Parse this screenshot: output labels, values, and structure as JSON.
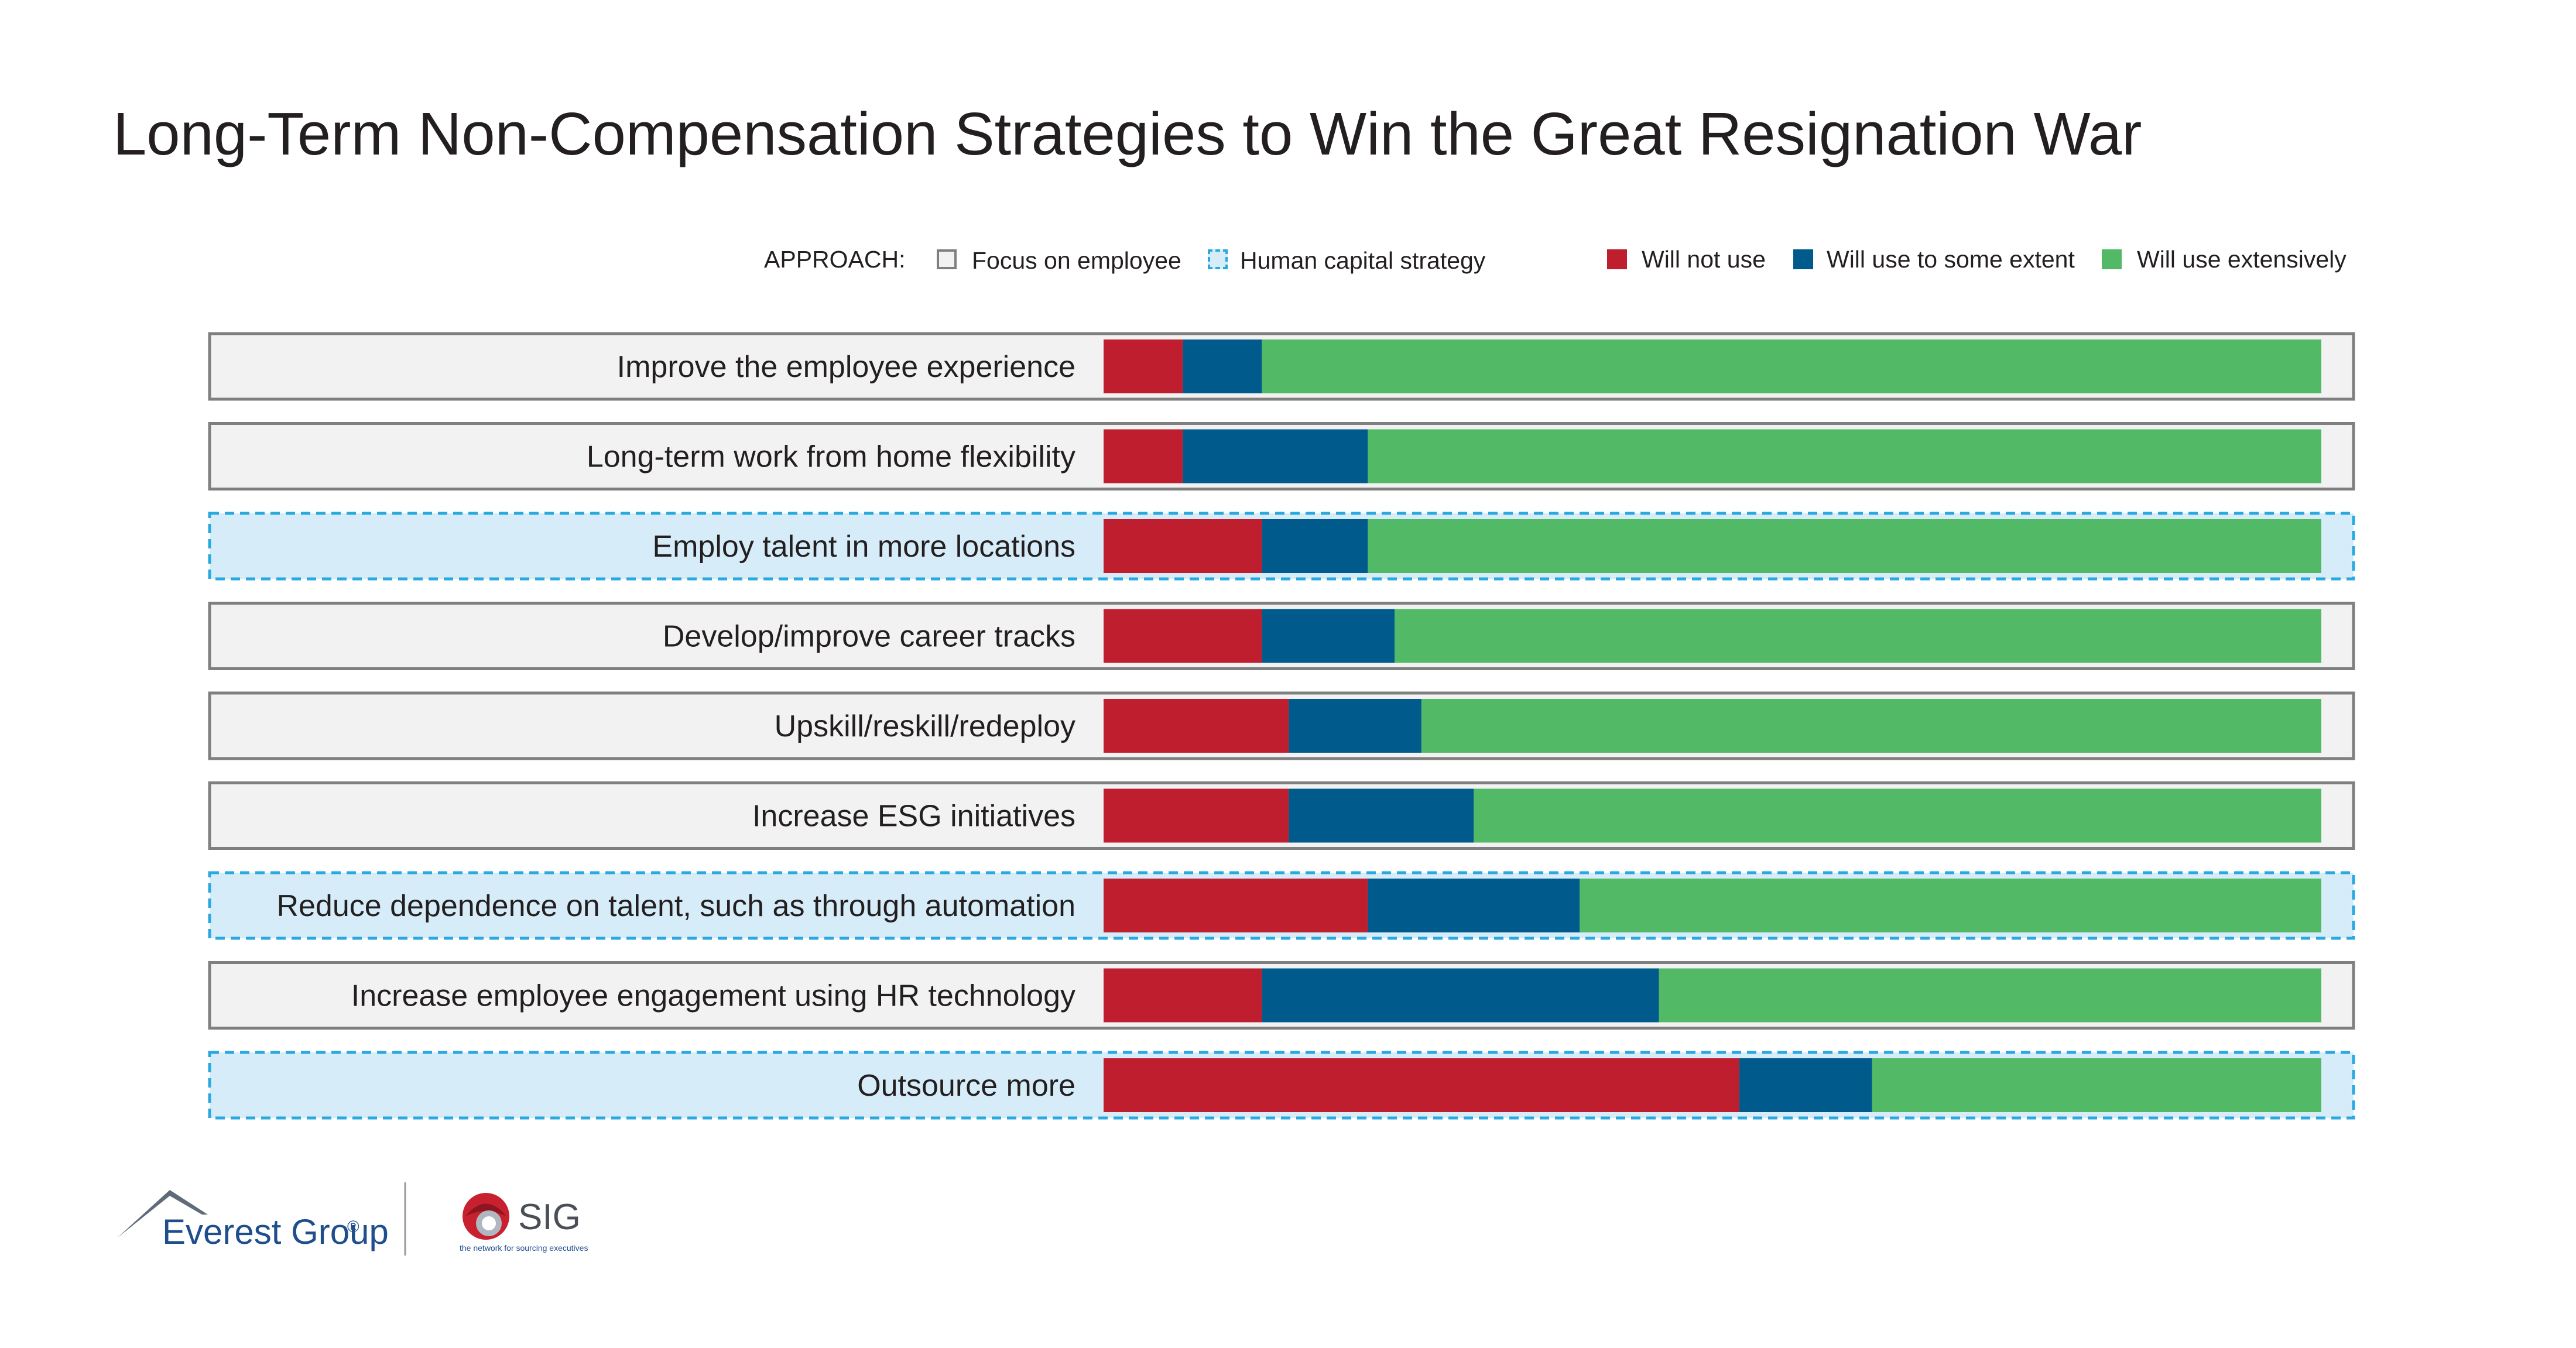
{
  "title": "Long-Term Non-Compensation Strategies to Win the Great Resignation War",
  "legend": {
    "approach_label": "APPROACH:",
    "approaches": [
      {
        "label": "Focus on employee",
        "style": "solid",
        "fill": "#f2f2f2",
        "border": "#7f7f7f"
      },
      {
        "label": "Human capital strategy",
        "style": "dashed",
        "fill": "#d6ecf8",
        "border": "#29a9e0"
      }
    ],
    "responses": [
      {
        "label": "Will not use",
        "color": "#be1e2d"
      },
      {
        "label": "Will use to some extent",
        "color": "#005a8c"
      },
      {
        "label": "Will use extensively",
        "color": "#52b966"
      }
    ]
  },
  "chart_data": {
    "type": "bar",
    "orientation": "horizontal",
    "stacked": true,
    "normalized_to": 100,
    "categories": [
      "Improve the employee experience",
      "Long-term work from home flexibility",
      "Employ talent in more locations",
      "Develop/improve career tracks",
      "Upskill/reskill/redeploy",
      "Increase ESG initiatives",
      "Reduce dependence on talent, such as through automation",
      "Increase employee engagement using HR technology",
      "Outsource more"
    ],
    "approach": [
      "Focus on employee",
      "Focus on employee",
      "Human capital strategy",
      "Focus on employee",
      "Focus on employee",
      "Focus on employee",
      "Human capital strategy",
      "Focus on employee",
      "Human capital strategy"
    ],
    "series": [
      {
        "name": "Will not use",
        "color": "#be1e2d",
        "values": [
          6.5,
          6.5,
          13,
          13,
          15.2,
          15.2,
          21.7,
          13,
          52.2
        ]
      },
      {
        "name": "Will use to some extent",
        "color": "#005a8c",
        "values": [
          6.5,
          15.2,
          8.7,
          10.9,
          10.9,
          15.2,
          17.4,
          32.6,
          10.9
        ]
      },
      {
        "name": "Will use extensively",
        "color": "#52b966",
        "values": [
          87,
          78.3,
          78.3,
          76.1,
          73.9,
          69.6,
          60.9,
          54.4,
          36.9
        ]
      }
    ],
    "xlim": [
      0,
      100
    ]
  },
  "logos": {
    "everest": {
      "text": "Everest Group",
      "mark": "®"
    },
    "sig": {
      "text": "SIG",
      "tagline": "the network for sourcing executives"
    }
  }
}
